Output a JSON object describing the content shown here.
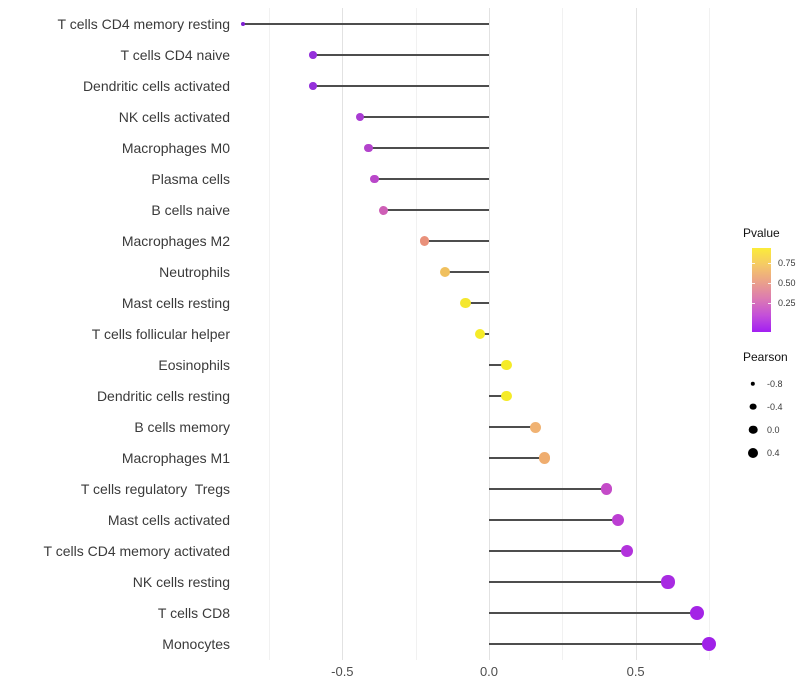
{
  "colors": {
    "background": "#ffffff",
    "stem": "#4d4d4d",
    "grid_major": "#e2e2e2",
    "grid_minor": "#f1f1f1",
    "axis_text": "#4d4d4d",
    "label_text": "#3a3a3a",
    "legend_dot": "#000000"
  },
  "chart_data": {
    "type": "scatter",
    "variant": "lollipop",
    "orientation": "horizontal",
    "title": "",
    "xlabel": "",
    "ylabel": "",
    "xlim": [
      -0.92,
      0.86
    ],
    "grid": "vertical-only",
    "legend_position": "right",
    "x_ticks": [
      {
        "value": -0.5,
        "label": "-0.5"
      },
      {
        "value": 0.0,
        "label": "0.0"
      },
      {
        "value": 0.5,
        "label": "0.5"
      }
    ],
    "x_major_gridlines": [
      -0.5,
      0.0,
      0.5
    ],
    "x_minor_gridlines": [
      -0.75,
      -0.25,
      0.25,
      0.75
    ],
    "categories": [
      "T cells CD4 memory resting",
      "T cells CD4 naive",
      "Dendritic cells activated",
      "NK cells activated",
      "Macrophages M0",
      "Plasma cells",
      "B cells naive",
      "Macrophages M2",
      "Neutrophils",
      "Mast cells resting",
      "T cells follicular helper",
      "Eosinophils",
      "Dendritic cells resting",
      "B cells memory",
      "Macrophages M1",
      "T cells regulatory  Tregs",
      "Mast cells activated",
      "T cells CD4 memory activated",
      "NK cells resting",
      "T cells CD8",
      "Monocytes"
    ],
    "series": [
      {
        "name": "Pearson",
        "values": [
          -0.84,
          -0.6,
          -0.6,
          -0.44,
          -0.41,
          -0.39,
          -0.36,
          -0.22,
          -0.15,
          -0.08,
          -0.03,
          0.06,
          0.06,
          0.16,
          0.19,
          0.4,
          0.44,
          0.47,
          0.61,
          0.71,
          0.75
        ]
      }
    ],
    "point_colors": [
      "#7E1FD1",
      "#9530DB",
      "#9530DB",
      "#A93BD3",
      "#B343CC",
      "#B947C9",
      "#CE5FB6",
      "#E9917B",
      "#F0C05E",
      "#F4E72F",
      "#F5EB28",
      "#F5EB28",
      "#F5EB28",
      "#F0B272",
      "#EFAD6F",
      "#C44BC8",
      "#BC3ED3",
      "#B232DC",
      "#A82BE2",
      "#A424E6",
      "#A021E8"
    ],
    "point_radii": [
      2.0,
      3.8,
      3.8,
      4.3,
      4.3,
      4.3,
      4.5,
      4.8,
      5.0,
      5.2,
      5.2,
      5.4,
      5.4,
      5.5,
      5.6,
      5.8,
      6.0,
      6.2,
      6.6,
      7.0,
      7.0
    ],
    "color_legend": {
      "title": "Pvalue",
      "gradient_top_to_bottom": [
        "#FBEC3A",
        "#F5C966",
        "#EBA289",
        "#DC7BB1",
        "#C450D9",
        "#A21FF2"
      ],
      "ticks": [
        {
          "label": "0.75",
          "pos": 0.18
        },
        {
          "label": "0.50",
          "pos": 0.42
        },
        {
          "label": "0.25",
          "pos": 0.66
        }
      ]
    },
    "size_legend": {
      "title": "Pearson",
      "items": [
        {
          "label": "-0.8",
          "r": 2.2
        },
        {
          "label": "-0.4",
          "r": 3.4
        },
        {
          "label": "0.0",
          "r": 4.3
        },
        {
          "label": "0.4",
          "r": 5.0
        }
      ]
    }
  }
}
